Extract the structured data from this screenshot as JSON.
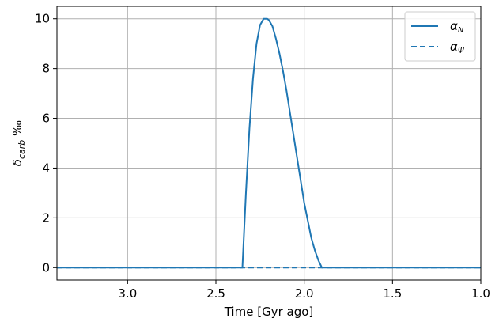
{
  "chart_data": {
    "type": "line",
    "xlabel": "Time [Gyr ago]",
    "ylabel_main": "δ",
    "ylabel_sub": "carb",
    "ylabel_unit": "‰",
    "xlim": [
      3.4,
      1.0
    ],
    "ylim": [
      -0.5,
      10.5
    ],
    "xticks": [
      3.0,
      2.5,
      2.0,
      1.5,
      1.0
    ],
    "xtick_labels": [
      "3.0",
      "2.5",
      "2.0",
      "1.5",
      "1.0"
    ],
    "yticks": [
      0,
      2,
      4,
      6,
      8,
      10
    ],
    "ytick_labels": [
      "0",
      "2",
      "4",
      "6",
      "8",
      "10"
    ],
    "grid": true,
    "legend_position": "top-right",
    "series": [
      {
        "name_main": "α",
        "name_sub": "N",
        "style": "solid",
        "color": "#1f77b4",
        "x": [
          3.4,
          2.35,
          2.33,
          2.31,
          2.29,
          2.27,
          2.25,
          2.23,
          2.21,
          2.2,
          2.18,
          2.16,
          2.14,
          2.12,
          2.1,
          2.08,
          2.06,
          2.04,
          2.02,
          2.0,
          1.98,
          1.96,
          1.94,
          1.92,
          1.9,
          1.0
        ],
        "y": [
          0,
          0,
          3.0,
          5.6,
          7.6,
          9.0,
          9.75,
          10.0,
          10.0,
          9.95,
          9.7,
          9.2,
          8.6,
          7.9,
          7.1,
          6.2,
          5.3,
          4.4,
          3.5,
          2.6,
          1.9,
          1.2,
          0.7,
          0.3,
          0,
          0
        ]
      },
      {
        "name_main": "α",
        "name_sub": "Ψ",
        "style": "dashed",
        "color": "#1f77b4",
        "x": [
          3.4,
          1.0
        ],
        "y": [
          0,
          0
        ]
      }
    ]
  }
}
